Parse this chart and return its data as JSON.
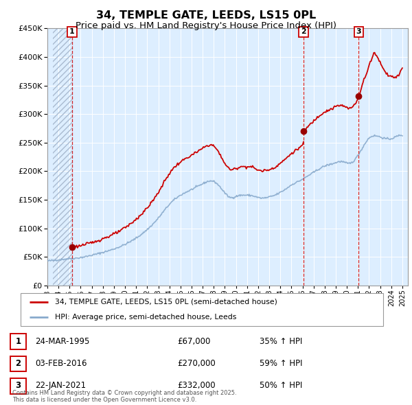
{
  "title": "34, TEMPLE GATE, LEEDS, LS15 0PL",
  "subtitle": "Price paid vs. HM Land Registry's House Price Index (HPI)",
  "title_fontsize": 11.5,
  "subtitle_fontsize": 9.5,
  "background_color": "#ffffff",
  "plot_bg_color": "#ddeeff",
  "hatch_color": "#b8ccdd",
  "grid_color": "#ffffff",
  "ylim": [
    0,
    450000
  ],
  "yticks": [
    0,
    50000,
    100000,
    150000,
    200000,
    250000,
    300000,
    350000,
    400000,
    450000
  ],
  "red_line_color": "#cc0000",
  "blue_line_color": "#88aacc",
  "dashed_line_color": "#cc0000",
  "legend_label_red": "34, TEMPLE GATE, LEEDS, LS15 0PL (semi-detached house)",
  "legend_label_blue": "HPI: Average price, semi-detached house, Leeds",
  "sale_years": [
    1995.23,
    2016.09,
    2021.06
  ],
  "sale_prices": [
    67000,
    270000,
    332000
  ],
  "sale_labels": [
    "1",
    "2",
    "3"
  ],
  "table_rows": [
    {
      "label": "1",
      "date": "24-MAR-1995",
      "price": "£67,000",
      "hpi": "35% ↑ HPI"
    },
    {
      "label": "2",
      "date": "03-FEB-2016",
      "price": "£270,000",
      "hpi": "59% ↑ HPI"
    },
    {
      "label": "3",
      "date": "22-JAN-2021",
      "price": "£332,000",
      "hpi": "50% ↑ HPI"
    }
  ],
  "footer": "Contains HM Land Registry data © Crown copyright and database right 2025.\nThis data is licensed under the Open Government Licence v3.0.",
  "xmin": 1993.5,
  "xmax": 2025.5,
  "xticks": [
    1993,
    1994,
    1995,
    1996,
    1997,
    1998,
    1999,
    2000,
    2001,
    2002,
    2003,
    2004,
    2005,
    2006,
    2007,
    2008,
    2009,
    2010,
    2011,
    2012,
    2013,
    2014,
    2015,
    2016,
    2017,
    2018,
    2019,
    2020,
    2021,
    2022,
    2023,
    2024,
    2025
  ]
}
